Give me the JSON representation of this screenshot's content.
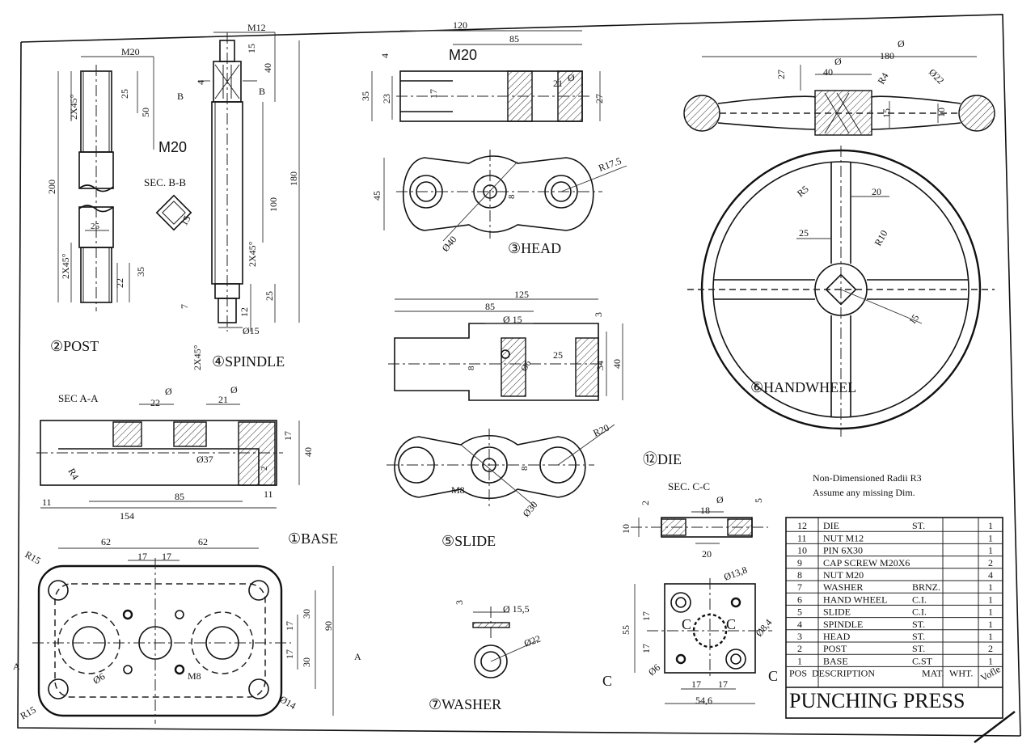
{
  "sheet": {
    "title": "PUNCHING PRESS",
    "notes": [
      "Non-Dimensioned Radii R3",
      "Assume any missing Dim."
    ]
  },
  "labels": {
    "post": "②POST",
    "spindle": "④SPINDLE",
    "head": "③HEAD",
    "handwheel": "⑥HANDWHEEL",
    "base": "①BASE",
    "slide": "⑤SLIDE",
    "washer": "⑦WASHER",
    "die": "⑫DIE",
    "sec_aa": "SEC A-A",
    "sec_bb": "SEC. B-B",
    "sec_cc": "SEC. C-C"
  },
  "dims": {
    "post": [
      "M20",
      "2X45°",
      "25",
      "50",
      "200",
      "M20",
      "25",
      "2X45°",
      "22",
      "35"
    ],
    "spindle": [
      "M12",
      "15",
      "40",
      "B",
      "B",
      "4",
      "180",
      "100",
      "2X45°",
      "25",
      "12",
      "7",
      "Ø15",
      "2X45°",
      "15"
    ],
    "head": [
      "120",
      "85",
      "M20",
      "4",
      "23",
      "35",
      "17",
      "21",
      "Ø",
      "27",
      "45",
      "R17.5",
      "8",
      "Ø40"
    ],
    "slide": [
      "125",
      "85",
      "Ø 15",
      "3",
      "25",
      "8",
      "Ø6",
      "34",
      "40",
      "R20",
      "8",
      "M8",
      "Ø30"
    ],
    "handwheel": [
      "180",
      "Ø",
      "27",
      "40",
      "Ø",
      "R4",
      "Ø22",
      "15",
      "10",
      "R5",
      "20",
      "25",
      "R10",
      "15"
    ],
    "base": [
      "22",
      "Ø",
      "21",
      "Ø",
      "17",
      "40",
      "R4",
      "Ø37",
      "2",
      "85",
      "11",
      "11",
      "154",
      "62",
      "62",
      "17",
      "17",
      "R15",
      "90",
      "30",
      "17",
      "17",
      "30",
      "Ø6",
      "M8",
      "R15",
      "Ø14",
      "A",
      "A"
    ],
    "washer": [
      "3",
      "Ø 15,5",
      "Ø22"
    ],
    "die": [
      "5",
      "2",
      "18",
      "Ø",
      "10",
      "20",
      "Ø13,8",
      "55",
      "17",
      "17",
      "C",
      "C",
      "Ø8,4",
      "Ø6",
      "17",
      "17",
      "54,6",
      "C",
      "C"
    ]
  },
  "bom": {
    "rows": [
      {
        "pos": "12",
        "desc": "DIE",
        "mat": "ST.",
        "qty": "1"
      },
      {
        "pos": "11",
        "desc": "NUT M12",
        "mat": "",
        "qty": "1"
      },
      {
        "pos": "10",
        "desc": "PIN 6X30",
        "mat": "",
        "qty": "1"
      },
      {
        "pos": "9",
        "desc": "CAP SCREW M20X6",
        "mat": "",
        "qty": "2"
      },
      {
        "pos": "8",
        "desc": "NUT M20",
        "mat": "",
        "qty": "4"
      },
      {
        "pos": "7",
        "desc": "WASHER",
        "mat": "BRNZ.",
        "qty": "1"
      },
      {
        "pos": "6",
        "desc": "HAND WHEEL",
        "mat": "C.I.",
        "qty": "1"
      },
      {
        "pos": "5",
        "desc": "SLIDE",
        "mat": "C.I.",
        "qty": "1"
      },
      {
        "pos": "4",
        "desc": "SPINDLE",
        "mat": "ST.",
        "qty": "1"
      },
      {
        "pos": "3",
        "desc": "HEAD",
        "mat": "ST.",
        "qty": "1"
      },
      {
        "pos": "2",
        "desc": "POST",
        "mat": "ST.",
        "qty": "2"
      },
      {
        "pos": "1",
        "desc": "BASE",
        "mat": "C.ST",
        "qty": "1"
      }
    ],
    "header": {
      "pos": "POS",
      "desc": "DESCRIPTION",
      "mat": "MAT.",
      "qty": "WHT."
    },
    "signature": "Vofle"
  },
  "colors": {
    "ink": "#111111",
    "paper": "#ffffff"
  }
}
